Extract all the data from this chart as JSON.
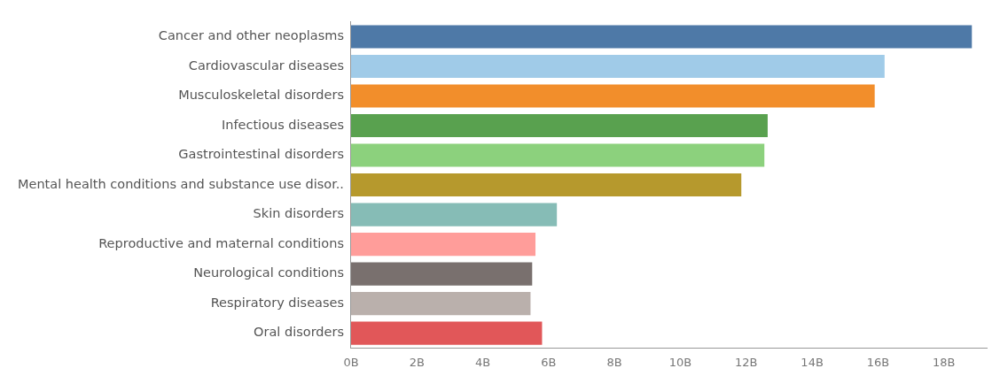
{
  "chart_data": {
    "type": "bar",
    "orientation": "horizontal",
    "categories": [
      "Cancer and other neoplasms",
      "Cardiovascular diseases",
      "Musculoskeletal disorders",
      "Infectious diseases",
      "Gastrointestinal disorders",
      "Mental health conditions and substance use disor..",
      "Skin disorders",
      "Reproductive and maternal conditions",
      "Neurological conditions",
      "Respiratory diseases",
      "Oral disorders"
    ],
    "values": [
      18.85,
      16.2,
      15.9,
      12.65,
      12.55,
      11.85,
      6.25,
      5.6,
      5.5,
      5.45,
      5.8
    ],
    "colors": [
      "#4e79a7",
      "#a0cbe8",
      "#f28e2b",
      "#59a14f",
      "#8cd17d",
      "#b6992d",
      "#86bcb6",
      "#ff9d9a",
      "#79706e",
      "#bab0ac",
      "#e15759"
    ],
    "xlim": [
      0,
      19.3
    ],
    "xticks": [
      {
        "value": 0,
        "label": "0B"
      },
      {
        "value": 2,
        "label": "2B"
      },
      {
        "value": 4,
        "label": "4B"
      },
      {
        "value": 6,
        "label": "6B"
      },
      {
        "value": 8,
        "label": "8B"
      },
      {
        "value": 10,
        "label": "10B"
      },
      {
        "value": 12,
        "label": "12B"
      },
      {
        "value": 14,
        "label": "14B"
      },
      {
        "value": 16,
        "label": "16B"
      },
      {
        "value": 18,
        "label": "18B"
      }
    ],
    "grid": false,
    "legend": false
  }
}
